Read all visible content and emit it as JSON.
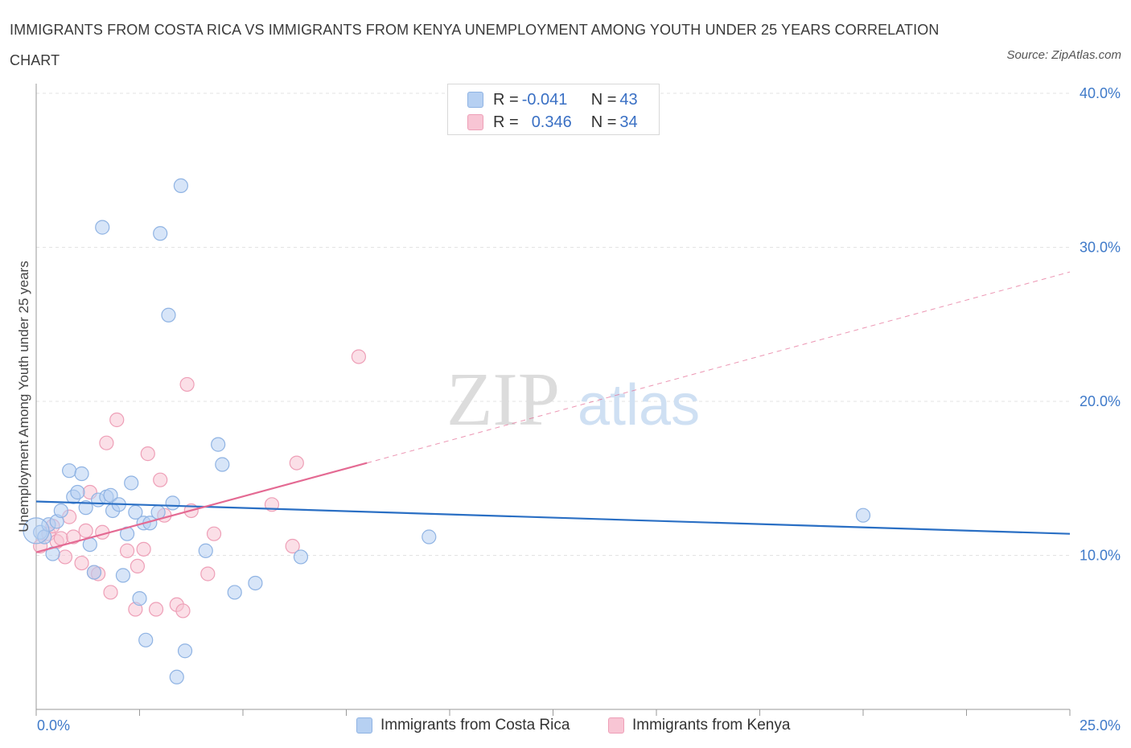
{
  "chart_data": {
    "type": "scatter",
    "title": "IMMIGRANTS FROM COSTA RICA VS IMMIGRANTS FROM KENYA UNEMPLOYMENT AMONG YOUTH UNDER 25 YEARS CORRELATION CHART",
    "source": "Source: ZipAtlas.com",
    "ylabel": "Unemployment Among Youth under 25 years",
    "xlabel": "",
    "xlim": [
      0,
      25
    ],
    "ylim": [
      0,
      40
    ],
    "y_ticks": [
      {
        "value": 10,
        "label": "10.0%"
      },
      {
        "value": 20,
        "label": "20.0%"
      },
      {
        "value": 30,
        "label": "30.0%"
      },
      {
        "value": 40,
        "label": "40.0%"
      }
    ],
    "x_tick_labels": {
      "min": "0.0%",
      "max": "25.0%"
    },
    "legend": {
      "rows": [
        {
          "r_label": "R = ",
          "r_value": "-0.041",
          "n_label": "N = ",
          "n_value": "43"
        },
        {
          "r_label": "R = ",
          "r_value": "0.346",
          "n_label": "N = ",
          "n_value": "34"
        }
      ]
    },
    "watermark": {
      "zip": "ZIP",
      "atlas": "atlas"
    },
    "colors": {
      "blue_fill": "#b6d0f2",
      "blue_stroke": "#8fb3e3",
      "blue_line": "#2a6fc4",
      "pink_fill": "#f8c5d4",
      "pink_stroke": "#ee9fb7",
      "pink_line": "#e46a93",
      "grid": "#e3e3e3",
      "tick_text": "#3f7ac9"
    },
    "series": [
      {
        "name": "Immigrants from Costa Rica",
        "color": "#b6d0f2",
        "trend": {
          "x": [
            0,
            25
          ],
          "y": [
            13.5,
            11.4
          ]
        },
        "points": [
          [
            0.1,
            11.5
          ],
          [
            0.2,
            11.2
          ],
          [
            0.3,
            12.0
          ],
          [
            0.4,
            10.1
          ],
          [
            0.5,
            12.2
          ],
          [
            0.6,
            12.9
          ],
          [
            0.8,
            15.5
          ],
          [
            0.9,
            13.8
          ],
          [
            1.0,
            14.1
          ],
          [
            1.1,
            15.3
          ],
          [
            1.2,
            13.1
          ],
          [
            1.3,
            10.7
          ],
          [
            1.4,
            8.9
          ],
          [
            1.5,
            13.6
          ],
          [
            1.6,
            31.3
          ],
          [
            1.7,
            13.8
          ],
          [
            1.8,
            13.9
          ],
          [
            1.85,
            12.9
          ],
          [
            2.0,
            13.3
          ],
          [
            2.1,
            8.7
          ],
          [
            2.2,
            11.4
          ],
          [
            2.3,
            14.7
          ],
          [
            2.4,
            12.8
          ],
          [
            2.5,
            7.2
          ],
          [
            2.6,
            12.1
          ],
          [
            2.65,
            4.5
          ],
          [
            2.75,
            12.1
          ],
          [
            2.95,
            12.8
          ],
          [
            3.0,
            30.9
          ],
          [
            3.2,
            25.6
          ],
          [
            3.3,
            13.4
          ],
          [
            3.4,
            2.1
          ],
          [
            3.5,
            34.0
          ],
          [
            3.6,
            3.8
          ],
          [
            4.1,
            10.3
          ],
          [
            4.4,
            17.2
          ],
          [
            4.5,
            15.9
          ],
          [
            4.8,
            7.6
          ],
          [
            5.3,
            8.2
          ],
          [
            6.4,
            9.9
          ],
          [
            9.5,
            11.2
          ],
          [
            20.0,
            12.6
          ],
          [
            0.0,
            11.6
          ]
        ]
      },
      {
        "name": "Immigrants from Kenya",
        "color": "#f8c5d4",
        "trend_solid": {
          "x": [
            0,
            8
          ],
          "y": [
            10.2,
            16.0
          ]
        },
        "trend_dashed": {
          "x": [
            8,
            25
          ],
          "y": [
            16.0,
            28.4
          ]
        },
        "points": [
          [
            0.1,
            10.6
          ],
          [
            0.3,
            11.4
          ],
          [
            0.4,
            11.9
          ],
          [
            0.5,
            10.9
          ],
          [
            0.6,
            11.1
          ],
          [
            0.7,
            9.9
          ],
          [
            0.8,
            12.5
          ],
          [
            0.9,
            11.2
          ],
          [
            1.1,
            9.5
          ],
          [
            1.2,
            11.6
          ],
          [
            1.3,
            14.1
          ],
          [
            1.4,
            8.9
          ],
          [
            1.5,
            8.8
          ],
          [
            1.6,
            11.5
          ],
          [
            1.7,
            17.3
          ],
          [
            1.8,
            7.6
          ],
          [
            1.95,
            18.8
          ],
          [
            2.2,
            10.3
          ],
          [
            2.4,
            6.5
          ],
          [
            2.45,
            9.3
          ],
          [
            2.6,
            10.4
          ],
          [
            2.7,
            16.6
          ],
          [
            2.9,
            6.5
          ],
          [
            3.0,
            14.9
          ],
          [
            3.1,
            12.6
          ],
          [
            3.4,
            6.8
          ],
          [
            3.55,
            6.4
          ],
          [
            3.65,
            21.1
          ],
          [
            3.75,
            12.9
          ],
          [
            4.15,
            8.8
          ],
          [
            4.3,
            11.4
          ],
          [
            5.7,
            13.3
          ],
          [
            6.2,
            10.6
          ],
          [
            6.3,
            16.0
          ]
        ],
        "extra_points": [
          [
            7.8,
            22.9
          ]
        ]
      }
    ]
  }
}
